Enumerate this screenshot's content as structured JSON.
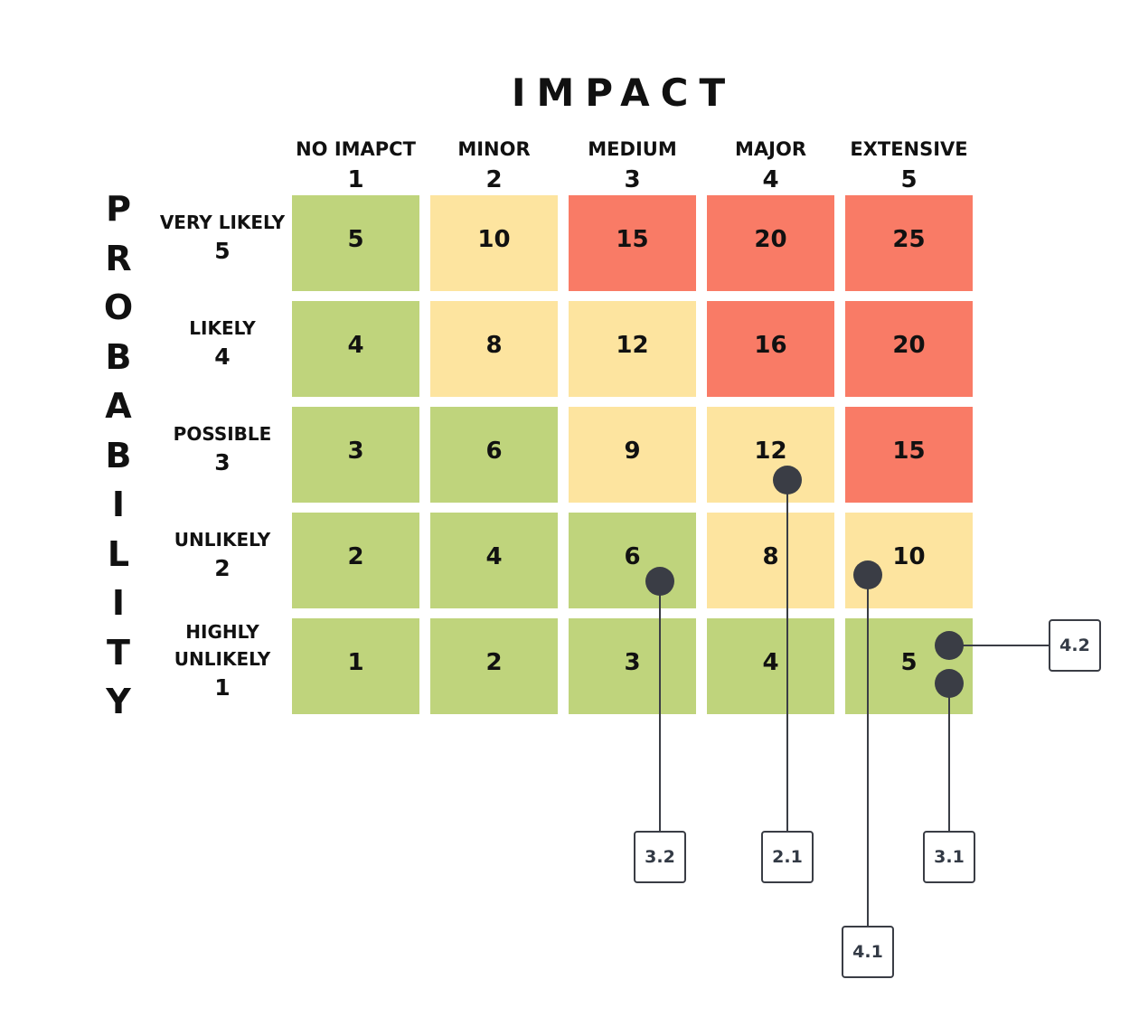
{
  "title": "IMPACT",
  "vertical_title": "PROBABILITY",
  "colors": {
    "low": "#bfd47c",
    "medium": "#fde49f",
    "high": "#f97b66",
    "marker": "#3a3d45"
  },
  "columns": [
    {
      "name": "NO IMAPCT",
      "value": "1"
    },
    {
      "name": "MINOR",
      "value": "2"
    },
    {
      "name": "MEDIUM",
      "value": "3"
    },
    {
      "name": "MAJOR",
      "value": "4"
    },
    {
      "name": "EXTENSIVE",
      "value": "5"
    }
  ],
  "rows": [
    {
      "name_lines": [
        "VERY LIKELY"
      ],
      "value": "5",
      "cells": [
        {
          "value": "5",
          "level": "low"
        },
        {
          "value": "10",
          "level": "medium"
        },
        {
          "value": "15",
          "level": "high"
        },
        {
          "value": "20",
          "level": "high"
        },
        {
          "value": "25",
          "level": "high"
        }
      ]
    },
    {
      "name_lines": [
        "LIKELY"
      ],
      "value": "4",
      "cells": [
        {
          "value": "4",
          "level": "low"
        },
        {
          "value": "8",
          "level": "medium"
        },
        {
          "value": "12",
          "level": "medium"
        },
        {
          "value": "16",
          "level": "high"
        },
        {
          "value": "20",
          "level": "high"
        }
      ]
    },
    {
      "name_lines": [
        "POSSIBLE"
      ],
      "value": "3",
      "cells": [
        {
          "value": "3",
          "level": "low"
        },
        {
          "value": "6",
          "level": "low"
        },
        {
          "value": "9",
          "level": "medium"
        },
        {
          "value": "12",
          "level": "medium"
        },
        {
          "value": "15",
          "level": "high"
        }
      ]
    },
    {
      "name_lines": [
        "UNLIKELY"
      ],
      "value": "2",
      "cells": [
        {
          "value": "2",
          "level": "low"
        },
        {
          "value": "4",
          "level": "low"
        },
        {
          "value": "6",
          "level": "low"
        },
        {
          "value": "8",
          "level": "medium"
        },
        {
          "value": "10",
          "level": "medium"
        }
      ]
    },
    {
      "name_lines": [
        "HIGHLY",
        "UNLIKELY"
      ],
      "value": "1",
      "cells": [
        {
          "value": "1",
          "level": "low"
        },
        {
          "value": "2",
          "level": "low"
        },
        {
          "value": "3",
          "level": "low"
        },
        {
          "value": "4",
          "level": "low"
        },
        {
          "value": "5",
          "level": "low"
        }
      ]
    }
  ],
  "markers": [
    {
      "label": "3.2",
      "impact": "3",
      "probability": "2"
    },
    {
      "label": "2.1",
      "impact": "4",
      "probability": "3"
    },
    {
      "label": "4.1",
      "impact": "5",
      "probability": "2"
    },
    {
      "label": "3.1",
      "impact": "5",
      "probability": "1"
    },
    {
      "label": "4.2",
      "impact": "5",
      "probability": "1"
    }
  ]
}
